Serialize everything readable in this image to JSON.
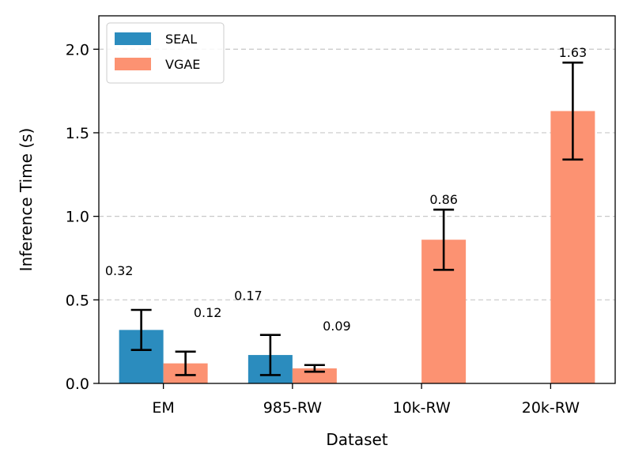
{
  "chart_data": {
    "type": "bar",
    "title": "",
    "xlabel": "Dataset",
    "ylabel": "Inference Time (s)",
    "ylim": [
      0,
      2.2
    ],
    "yticks": [
      "0.0",
      "0.5",
      "1.0",
      "1.5",
      "2.0"
    ],
    "grid": "horizontal-dashed",
    "legend_position": "top-left",
    "categories": [
      "EM",
      "985-RW",
      "10k-RW",
      "20k-RW"
    ],
    "series": [
      {
        "name": "SEAL",
        "color": "#2b8cbe",
        "values": [
          0.32,
          0.17,
          null,
          null
        ],
        "errors": [
          0.12,
          0.12,
          null,
          null
        ],
        "labels": [
          "0.32",
          "0.17",
          null,
          null
        ]
      },
      {
        "name": "VGAE",
        "color": "#fc9272",
        "values": [
          0.12,
          0.09,
          0.86,
          1.63
        ],
        "errors": [
          0.07,
          0.02,
          0.18,
          0.29
        ],
        "labels": [
          "0.12",
          "0.09",
          "0.86",
          "1.63"
        ]
      }
    ]
  }
}
